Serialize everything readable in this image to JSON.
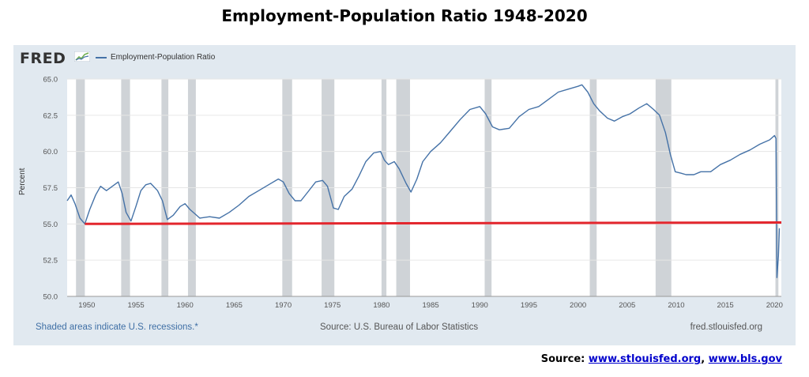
{
  "page": {
    "title": "Employment-Population Ratio 1948-2020",
    "source_label": "Source:",
    "source_link1": "www.stlouisfed.org",
    "source_sep": ",",
    "source_link2": "www.bls.gov"
  },
  "fred": {
    "logo": "FRED",
    "legend_label": "Employment-Population Ratio",
    "footer_left": "Shaded areas indicate U.S. recessions.*",
    "footer_mid": "Source: U.S. Bureau of Labor Statistics",
    "footer_right": "fred.stlouisfed.org"
  },
  "colors": {
    "series": "#4572a7",
    "reference_line": "#e3262d",
    "recession": "#cfd3d7",
    "panel": "#e1e9f0"
  },
  "chart_data": {
    "type": "line",
    "title": "",
    "xlabel": "",
    "ylabel": "Percent",
    "xlim": [
      1948,
      2020.7
    ],
    "ylim": [
      50,
      65
    ],
    "grid": true,
    "legend": "top-left",
    "x_ticks": [
      1950,
      1955,
      1960,
      1965,
      1970,
      1975,
      1980,
      1985,
      1990,
      1995,
      2000,
      2005,
      2010,
      2015,
      2020
    ],
    "y_ticks": [
      50.0,
      52.5,
      55.0,
      57.5,
      60.0,
      62.5,
      65.0
    ],
    "recessions": [
      [
        1948.9,
        1949.8
      ],
      [
        1953.5,
        1954.4
      ],
      [
        1957.6,
        1958.3
      ],
      [
        1960.3,
        1961.1
      ],
      [
        1969.9,
        1970.9
      ],
      [
        1973.9,
        1975.2
      ],
      [
        1980.0,
        1980.5
      ],
      [
        1981.5,
        1982.9
      ],
      [
        1990.5,
        1991.2
      ],
      [
        2001.2,
        2001.9
      ],
      [
        2007.9,
        2009.5
      ],
      [
        2020.1,
        2020.4
      ]
    ],
    "series": [
      {
        "name": "Employment-Population Ratio",
        "points": [
          [
            1948.0,
            56.6
          ],
          [
            1948.4,
            57.0
          ],
          [
            1948.8,
            56.4
          ],
          [
            1949.3,
            55.4
          ],
          [
            1949.8,
            55.0
          ],
          [
            1950.3,
            56.0
          ],
          [
            1950.9,
            57.0
          ],
          [
            1951.4,
            57.6
          ],
          [
            1952.0,
            57.3
          ],
          [
            1952.6,
            57.6
          ],
          [
            1953.2,
            57.9
          ],
          [
            1953.6,
            57.1
          ],
          [
            1954.0,
            55.8
          ],
          [
            1954.5,
            55.2
          ],
          [
            1955.0,
            56.2
          ],
          [
            1955.5,
            57.3
          ],
          [
            1956.0,
            57.7
          ],
          [
            1956.5,
            57.8
          ],
          [
            1957.2,
            57.3
          ],
          [
            1957.7,
            56.6
          ],
          [
            1958.2,
            55.3
          ],
          [
            1958.8,
            55.6
          ],
          [
            1959.5,
            56.2
          ],
          [
            1960.0,
            56.4
          ],
          [
            1960.5,
            56.0
          ],
          [
            1961.0,
            55.7
          ],
          [
            1961.5,
            55.4
          ],
          [
            1962.5,
            55.5
          ],
          [
            1963.5,
            55.4
          ],
          [
            1964.5,
            55.8
          ],
          [
            1965.5,
            56.3
          ],
          [
            1966.5,
            56.9
          ],
          [
            1967.5,
            57.3
          ],
          [
            1968.5,
            57.7
          ],
          [
            1969.5,
            58.1
          ],
          [
            1970.0,
            57.9
          ],
          [
            1970.6,
            57.1
          ],
          [
            1971.2,
            56.6
          ],
          [
            1971.8,
            56.6
          ],
          [
            1972.5,
            57.2
          ],
          [
            1973.3,
            57.9
          ],
          [
            1974.0,
            58.0
          ],
          [
            1974.5,
            57.6
          ],
          [
            1975.1,
            56.1
          ],
          [
            1975.6,
            56.0
          ],
          [
            1976.2,
            56.9
          ],
          [
            1977.0,
            57.4
          ],
          [
            1977.7,
            58.3
          ],
          [
            1978.4,
            59.3
          ],
          [
            1979.2,
            59.9
          ],
          [
            1979.9,
            60.0
          ],
          [
            1980.3,
            59.4
          ],
          [
            1980.7,
            59.1
          ],
          [
            1981.3,
            59.3
          ],
          [
            1981.8,
            58.8
          ],
          [
            1982.5,
            57.8
          ],
          [
            1983.0,
            57.2
          ],
          [
            1983.6,
            58.1
          ],
          [
            1984.2,
            59.3
          ],
          [
            1985.0,
            60.0
          ],
          [
            1986.0,
            60.6
          ],
          [
            1987.0,
            61.4
          ],
          [
            1988.0,
            62.2
          ],
          [
            1989.0,
            62.9
          ],
          [
            1990.0,
            63.1
          ],
          [
            1990.6,
            62.6
          ],
          [
            1991.3,
            61.7
          ],
          [
            1992.0,
            61.5
          ],
          [
            1993.0,
            61.6
          ],
          [
            1994.0,
            62.4
          ],
          [
            1995.0,
            62.9
          ],
          [
            1996.0,
            63.1
          ],
          [
            1997.0,
            63.6
          ],
          [
            1998.0,
            64.1
          ],
          [
            1999.0,
            64.3
          ],
          [
            2000.0,
            64.5
          ],
          [
            2000.4,
            64.6
          ],
          [
            2001.0,
            64.1
          ],
          [
            2001.6,
            63.3
          ],
          [
            2002.2,
            62.8
          ],
          [
            2003.0,
            62.3
          ],
          [
            2003.7,
            62.1
          ],
          [
            2004.5,
            62.4
          ],
          [
            2005.3,
            62.6
          ],
          [
            2006.2,
            63.0
          ],
          [
            2007.0,
            63.3
          ],
          [
            2007.7,
            62.9
          ],
          [
            2008.3,
            62.5
          ],
          [
            2008.9,
            61.3
          ],
          [
            2009.4,
            59.8
          ],
          [
            2009.9,
            58.6
          ],
          [
            2010.5,
            58.5
          ],
          [
            2011.0,
            58.4
          ],
          [
            2011.8,
            58.4
          ],
          [
            2012.5,
            58.6
          ],
          [
            2013.5,
            58.6
          ],
          [
            2014.5,
            59.1
          ],
          [
            2015.5,
            59.4
          ],
          [
            2016.5,
            59.8
          ],
          [
            2017.5,
            60.1
          ],
          [
            2018.5,
            60.5
          ],
          [
            2019.5,
            60.8
          ],
          [
            2020.0,
            61.1
          ],
          [
            2020.15,
            60.9
          ],
          [
            2020.25,
            51.3
          ],
          [
            2020.4,
            52.8
          ],
          [
            2020.5,
            54.7
          ]
        ]
      },
      {
        "name": "",
        "points": [
          [
            1949.8,
            55.0
          ],
          [
            2020.7,
            55.1
          ]
        ]
      }
    ]
  }
}
